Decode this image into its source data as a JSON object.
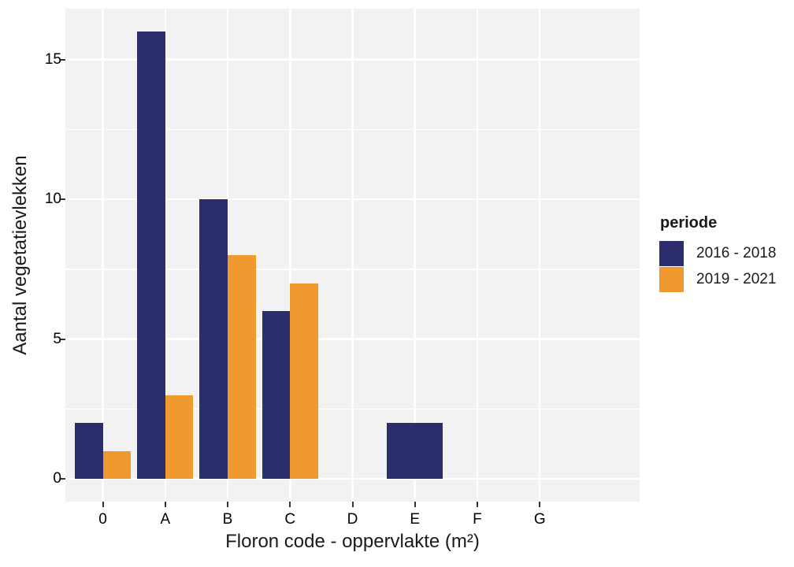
{
  "chart_data": {
    "type": "bar",
    "bar_mode": "dodge",
    "title": "",
    "xlabel": "Floron code - oppervlakte (m²)",
    "ylabel": "Aantal vegetatievlekken",
    "categories": [
      "0",
      "A",
      "B",
      "C",
      "D",
      "E",
      "F",
      "G"
    ],
    "series": [
      {
        "name": "2016 - 2018",
        "color": "#2B2D6C",
        "values": [
          2,
          16,
          10,
          6,
          0,
          2,
          0,
          0
        ]
      },
      {
        "name": "2019 - 2021",
        "color": "#F0992E",
        "values": [
          1,
          3,
          8,
          7,
          0,
          0,
          0,
          0
        ]
      }
    ],
    "ylim": [
      0,
      16.8
    ],
    "y_major_ticks": [
      0,
      5,
      10,
      15
    ],
    "y_minor_ticks": [
      2.5,
      7.5,
      12.5
    ],
    "legend_title": "periode",
    "legend_position": "right",
    "grid": "on"
  },
  "style": {
    "background": "#FFFFFF",
    "panel_bg": "#F2F2F2",
    "grid_color": "#FFFFFF",
    "tick_color": "#333333",
    "text_color": "#1A1A1A"
  }
}
